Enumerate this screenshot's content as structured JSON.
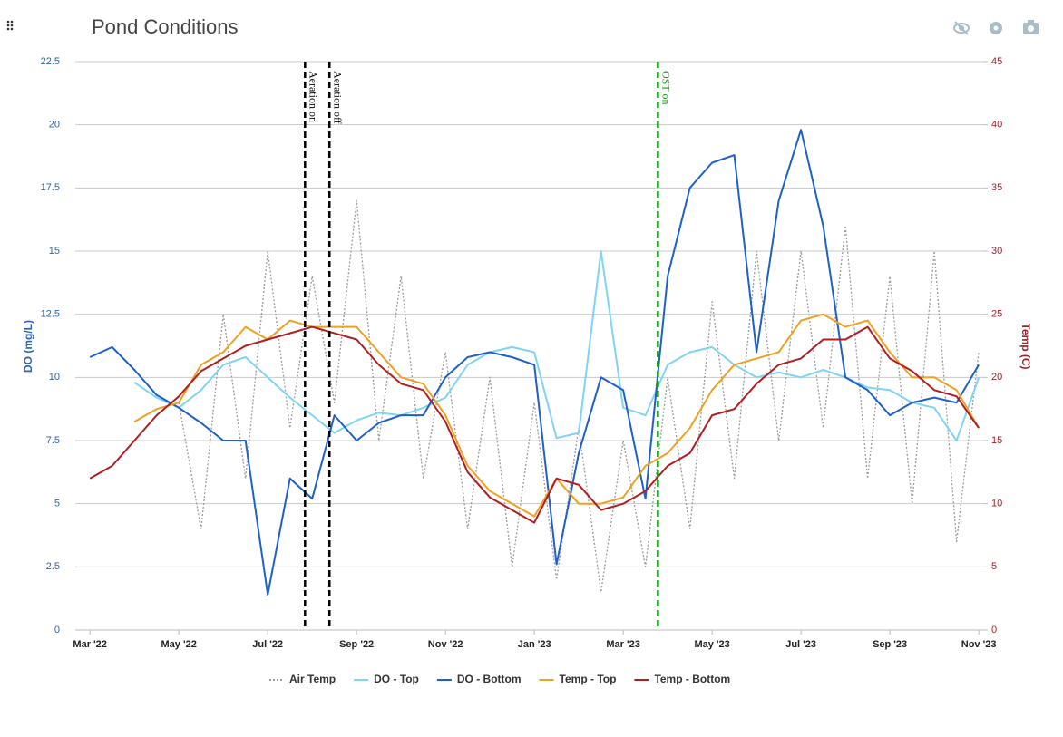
{
  "chart_data": {
    "type": "line",
    "title": "Pond Conditions",
    "ylabel": "DO (mg/L)",
    "y2label": "Temp (C)",
    "xlim": [
      -0.33,
      20.12
    ],
    "xticks": [
      {
        "value": 0,
        "label": "Mar '22"
      },
      {
        "value": 2,
        "label": "May '22"
      },
      {
        "value": 4,
        "label": "Jul '22"
      },
      {
        "value": 6,
        "label": "Sep '22"
      },
      {
        "value": 8,
        "label": "Nov '22"
      },
      {
        "value": 10,
        "label": "Jan '23"
      },
      {
        "value": 12,
        "label": "Mar '23"
      },
      {
        "value": 14,
        "label": "May '23"
      },
      {
        "value": 16,
        "label": "Jul '23"
      },
      {
        "value": 18,
        "label": "Sep '23"
      },
      {
        "value": 20,
        "label": "Nov '23"
      }
    ],
    "ylim": [
      0,
      22.5
    ],
    "yticks": [
      0,
      2.5,
      5,
      7.5,
      10,
      12.5,
      15,
      17.5,
      20,
      22.5
    ],
    "y2lim": [
      0,
      45
    ],
    "y2ticks": [
      0,
      5,
      10,
      15,
      20,
      25,
      30,
      35,
      40,
      45
    ],
    "grid": true,
    "legend": "bottom",
    "x": [
      0,
      0.5,
      1,
      1.5,
      2,
      2.5,
      3,
      3.5,
      4,
      4.5,
      5,
      5.5,
      6,
      6.5,
      7,
      7.5,
      8,
      8.5,
      9,
      9.5,
      10,
      10.5,
      11,
      11.5,
      12,
      12.5,
      13,
      13.5,
      14,
      14.5,
      15,
      15.5,
      16,
      16.5,
      17,
      17.5,
      18,
      18.5,
      19,
      19.5,
      20
    ],
    "series": [
      {
        "name": "Air Temp",
        "color": "#9a9a9a",
        "axis": "y2",
        "dashed": true,
        "values": [
          null,
          null,
          null,
          null,
          18,
          8,
          25,
          12,
          30,
          16,
          28,
          18,
          34,
          15,
          28,
          12,
          22,
          8,
          20,
          5,
          18,
          4,
          16,
          3,
          15,
          5,
          20,
          8,
          26,
          12,
          30,
          15,
          30,
          16,
          32,
          12,
          28,
          10,
          30,
          7,
          22
        ]
      },
      {
        "name": "DO - Top",
        "color": "#7fd3f5",
        "values": [
          null,
          null,
          9.8,
          9.2,
          8.8,
          9.5,
          10.5,
          10.8,
          10,
          9.2,
          8.5,
          7.8,
          8.3,
          8.6,
          8.5,
          8.8,
          9.2,
          10.5,
          11,
          11.2,
          11,
          7.6,
          7.8,
          15,
          8.8,
          8.5,
          10.5,
          11,
          11.2,
          10.5,
          10,
          10.2,
          10,
          10.3,
          10,
          9.6,
          9.5,
          9,
          8.8,
          7.5,
          10
        ]
      },
      {
        "name": "DO - Bottom",
        "color": "#1f5fc8",
        "values": [
          10.8,
          11.2,
          10.3,
          9.3,
          8.8,
          8.2,
          7.5,
          7.5,
          1.4,
          6,
          5.2,
          8.5,
          7.5,
          8.2,
          8.5,
          8.5,
          10,
          10.8,
          11,
          10.8,
          10.5,
          2.6,
          7,
          10,
          9.5,
          5.2,
          14,
          17.5,
          18.5,
          18.8,
          11,
          17,
          19.8,
          16,
          10,
          9.5,
          8.5,
          9,
          9.2,
          9,
          10.5
        ]
      },
      {
        "name": "Temp - Top",
        "color": "#f0a020",
        "axis": "y2",
        "values": [
          null,
          null,
          16.5,
          17.5,
          18,
          21,
          22,
          24,
          23,
          24.5,
          24,
          24,
          24,
          22,
          20,
          19.5,
          17,
          13,
          11,
          10,
          9,
          12,
          10,
          10,
          10.5,
          13,
          14,
          16,
          19,
          21,
          21.5,
          22,
          24.5,
          25,
          24,
          24.5,
          22,
          20,
          20,
          19,
          16
        ]
      },
      {
        "name": "Temp - Bottom",
        "color": "#b01e22",
        "axis": "y2",
        "values": [
          12,
          13,
          15,
          17,
          18.5,
          20.5,
          21.5,
          22.5,
          23,
          23.5,
          24,
          23.5,
          23,
          21,
          19.5,
          19,
          16.5,
          12.5,
          10.5,
          9.5,
          8.5,
          12,
          11.5,
          9.5,
          10,
          11,
          13,
          14,
          17,
          17.5,
          19.5,
          21,
          21.5,
          23,
          23,
          24,
          21.5,
          20.5,
          19,
          18.5,
          16
        ]
      }
    ],
    "annotations": [
      {
        "text": "Aeration on",
        "x": 4.84,
        "color": "#000000"
      },
      {
        "text": "Aeration off",
        "x": 5.39,
        "color": "#000000"
      },
      {
        "text": "OST on",
        "x": 12.78,
        "color": "#1a9a1a"
      }
    ]
  }
}
